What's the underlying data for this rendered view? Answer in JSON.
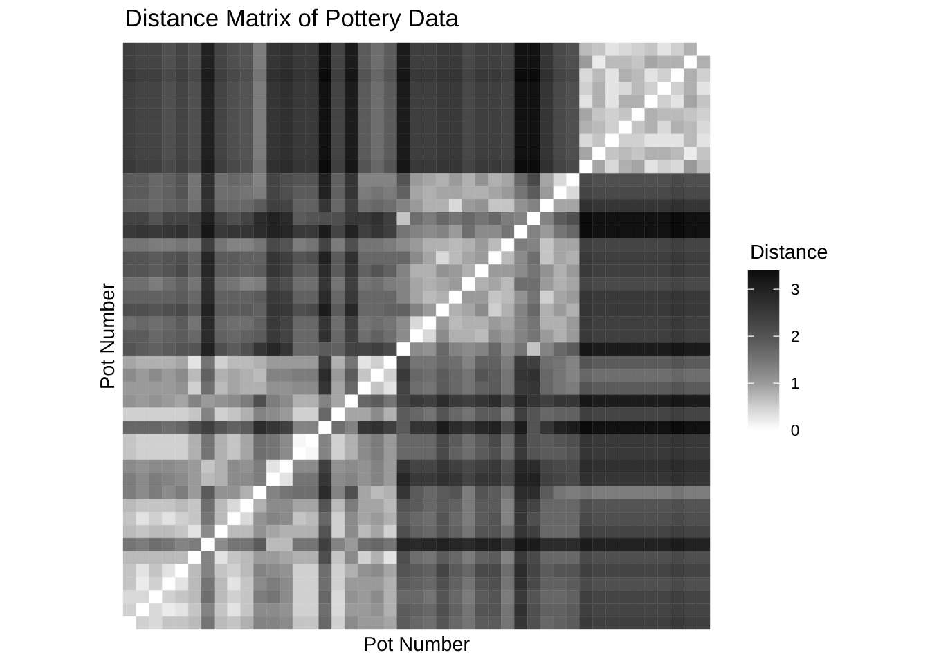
{
  "chart_data": {
    "type": "heatmap",
    "title": "Distance Matrix of Pottery Data",
    "xlabel": "Pot Number",
    "ylabel": "Pot Number",
    "clabel": "Distance",
    "categories": [
      null,
      null,
      null,
      null,
      null,
      null,
      null,
      null,
      null,
      null,
      null,
      null,
      null,
      null,
      null,
      null,
      null,
      null,
      null,
      null,
      null,
      null,
      null,
      null,
      null,
      null,
      null,
      null,
      null,
      null,
      null,
      null,
      null,
      null,
      null,
      null,
      null,
      null,
      null,
      null,
      null,
      null,
      null,
      null,
      null
    ],
    "y_categories": [
      null,
      null,
      null,
      null,
      null,
      null,
      null,
      null,
      null,
      null,
      null,
      null,
      null,
      null,
      null,
      null,
      null,
      null,
      null,
      null,
      null,
      null,
      null,
      null,
      null,
      null,
      null,
      null,
      null,
      null,
      null,
      null,
      null,
      null,
      null,
      null,
      null,
      null,
      null,
      null,
      null,
      null,
      null,
      null,
      null
    ],
    "clim": [
      0,
      3.4
    ],
    "cticks": [
      0,
      1,
      2,
      3
    ],
    "cells": [
      [
        2.4,
        2.3,
        2.3,
        2.1,
        2.3,
        2.1,
        3.0,
        2.3,
        2.1,
        2.0,
        1.4,
        2.6,
        2.7,
        2.5,
        2.5,
        3.3,
        2.3,
        3.1,
        1.9,
        1.6,
        1.9,
        3.1,
        2.4,
        2.4,
        2.5,
        2.5,
        2.2,
        2.4,
        2.4,
        2.3,
        3.3,
        3.3,
        2.6,
        2.2,
        2.1,
        0.7,
        0.6,
        0.3,
        0.4,
        0.5,
        0.6,
        0.3,
        0.5,
        0.8,
        0
      ],
      [
        2.4,
        2.3,
        2.3,
        2.1,
        2.3,
        2.1,
        3.0,
        2.3,
        2.1,
        2.0,
        1.4,
        2.6,
        2.7,
        2.5,
        2.5,
        3.3,
        2.3,
        3.1,
        1.9,
        1.6,
        1.9,
        3.1,
        2.4,
        2.4,
        2.5,
        2.5,
        2.2,
        2.4,
        2.4,
        2.3,
        3.3,
        3.3,
        2.6,
        2.2,
        2.1,
        1.0,
        0.2,
        0.7,
        0.7,
        0.6,
        0.9,
        0.8,
        0.8,
        0,
        0.8
      ],
      [
        2.5,
        2.4,
        2.4,
        2.2,
        2.4,
        2.2,
        3.1,
        2.4,
        2.2,
        2.1,
        1.5,
        2.7,
        2.8,
        2.6,
        2.6,
        3.4,
        2.4,
        3.2,
        2.0,
        1.7,
        2.0,
        3.2,
        2.5,
        2.5,
        2.6,
        2.6,
        2.3,
        2.5,
        2.5,
        2.4,
        3.4,
        3.4,
        2.7,
        2.3,
        2.2,
        0.4,
        0.7,
        0.3,
        0.8,
        0.7,
        0.3,
        0.5,
        0,
        0.8,
        0.5
      ],
      [
        2.4,
        2.3,
        2.3,
        2.1,
        2.3,
        2.1,
        3.0,
        2.3,
        2.1,
        2.0,
        1.4,
        2.6,
        2.7,
        2.5,
        2.5,
        3.3,
        2.3,
        3.1,
        1.9,
        1.6,
        1.9,
        3.1,
        2.4,
        2.4,
        2.5,
        2.5,
        2.2,
        2.4,
        2.4,
        2.3,
        3.3,
        3.3,
        2.6,
        2.2,
        2.1,
        0.5,
        0.8,
        0.3,
        0.4,
        0.7,
        0.5,
        0,
        0.5,
        0.8,
        0.3
      ],
      [
        2.4,
        2.3,
        2.3,
        2.1,
        2.3,
        2.1,
        3.0,
        2.3,
        2.1,
        2.0,
        1.4,
        2.6,
        2.7,
        2.5,
        2.5,
        3.3,
        2.3,
        3.1,
        1.9,
        1.6,
        1.9,
        3.1,
        2.4,
        2.4,
        2.5,
        2.5,
        2.2,
        2.4,
        2.4,
        2.3,
        3.3,
        3.3,
        2.6,
        2.2,
        2.1,
        0.3,
        0.8,
        0.3,
        0.8,
        0.8,
        0,
        0.5,
        0.3,
        0.9,
        0.6
      ],
      [
        2.4,
        2.3,
        2.3,
        2.1,
        2.3,
        2.1,
        3.0,
        2.3,
        2.1,
        2.0,
        1.4,
        2.6,
        2.7,
        2.5,
        2.5,
        3.3,
        2.3,
        3.1,
        1.9,
        1.6,
        1.9,
        3.1,
        2.4,
        2.4,
        2.5,
        2.5,
        2.2,
        2.4,
        2.4,
        2.3,
        3.3,
        3.3,
        2.6,
        2.2,
        2.1,
        0.9,
        0.6,
        0.5,
        0.6,
        0,
        0.8,
        0.7,
        0.7,
        0.6,
        0.5
      ],
      [
        2.4,
        2.3,
        2.3,
        2.1,
        2.3,
        2.1,
        3.0,
        2.3,
        2.1,
        2.0,
        1.4,
        2.6,
        2.7,
        2.5,
        2.5,
        3.3,
        2.3,
        3.1,
        1.9,
        1.6,
        1.9,
        3.1,
        2.4,
        2.4,
        2.5,
        2.5,
        2.2,
        2.4,
        2.4,
        2.3,
        3.3,
        3.3,
        2.6,
        2.2,
        2.1,
        0.8,
        0.7,
        0.5,
        0,
        0.6,
        0.8,
        0.4,
        0.8,
        0.7,
        0.4
      ],
      [
        2.4,
        2.3,
        2.3,
        2.1,
        2.3,
        2.1,
        3.0,
        2.3,
        2.1,
        2.0,
        1.4,
        2.6,
        2.7,
        2.5,
        2.5,
        3.3,
        2.3,
        3.1,
        1.9,
        1.6,
        1.9,
        3.1,
        2.4,
        2.4,
        2.5,
        2.5,
        2.2,
        2.4,
        2.4,
        2.3,
        3.3,
        3.3,
        2.6,
        2.2,
        2.1,
        0.4,
        0.6,
        0,
        0.5,
        0.5,
        0.3,
        0.3,
        0.3,
        0.7,
        0.3
      ],
      [
        2.4,
        2.3,
        2.3,
        2.1,
        2.3,
        2.1,
        3.0,
        2.3,
        2.1,
        2.0,
        1.4,
        2.6,
        2.7,
        2.5,
        2.5,
        3.3,
        2.3,
        3.1,
        1.9,
        1.6,
        1.9,
        3.1,
        2.4,
        2.4,
        2.5,
        2.5,
        2.2,
        2.4,
        2.4,
        2.3,
        3.3,
        3.3,
        2.6,
        2.2,
        2.1,
        0.9,
        0,
        0.6,
        0.7,
        0.6,
        0.8,
        0.8,
        0.7,
        0.2,
        0.6
      ],
      [
        2.5,
        2.4,
        2.4,
        2.2,
        2.4,
        2.2,
        3.1,
        2.4,
        2.2,
        2.1,
        1.5,
        2.7,
        2.8,
        2.6,
        2.6,
        3.4,
        2.4,
        3.2,
        2.0,
        1.7,
        2.0,
        3.2,
        2.5,
        2.5,
        2.6,
        2.6,
        2.3,
        2.5,
        2.5,
        2.4,
        3.4,
        3.4,
        2.7,
        2.3,
        2.2,
        0,
        0.9,
        0.4,
        0.8,
        0.9,
        0.3,
        0.5,
        0.4,
        1.0,
        0.7
      ],
      [
        1.9,
        1.9,
        1.7,
        1.8,
        2.0,
        1.5,
        2.7,
        1.6,
        1.7,
        1.6,
        1.3,
        2.3,
        2.1,
        2.0,
        2.0,
        3.0,
        1.8,
        2.6,
        1.3,
        1.3,
        1.3,
        2.0,
        1.0,
        0.9,
        0.8,
        1.0,
        0.8,
        1.1,
        0.8,
        0.9,
        1.7,
        2.2,
        0.9,
        0.4,
        0,
        2.2,
        2.1,
        2.1,
        2.1,
        2.1,
        2.1,
        2.1,
        2.2,
        2.1,
        2.1
      ],
      [
        1.9,
        1.9,
        1.7,
        1.8,
        2.0,
        1.5,
        2.7,
        1.6,
        1.6,
        1.5,
        1.4,
        2.3,
        2.1,
        1.9,
        1.9,
        3.0,
        1.8,
        2.6,
        1.4,
        1.5,
        1.4,
        1.8,
        0.9,
        0.8,
        0.9,
        0.9,
        0.8,
        0.8,
        0.9,
        1.0,
        1.5,
        1.9,
        1.0,
        0,
        0.4,
        2.3,
        2.2,
        2.2,
        2.2,
        2.2,
        2.2,
        2.2,
        2.3,
        2.2,
        2.2
      ],
      [
        1.8,
        1.8,
        1.7,
        1.8,
        1.9,
        1.6,
        2.6,
        1.7,
        1.7,
        1.7,
        1.9,
        2.4,
        2.3,
        1.8,
        1.8,
        2.6,
        1.7,
        2.4,
        1.6,
        1.7,
        1.6,
        1.3,
        1.0,
        0.8,
        0.8,
        0.4,
        1.0,
        1.1,
        0.6,
        0.6,
        1.1,
        1.3,
        0,
        0.9,
        0.9,
        2.7,
        2.6,
        2.6,
        2.6,
        2.6,
        2.6,
        2.6,
        2.7,
        2.6,
        2.6
      ],
      [
        2.3,
        2.3,
        2.0,
        2.3,
        2.3,
        2.4,
        3.0,
        2.3,
        2.1,
        2.3,
        2.8,
        3.0,
        2.8,
        1.9,
        2.0,
        2.1,
        2.1,
        2.5,
        2.5,
        2.7,
        2.4,
        0.6,
        1.6,
        1.4,
        1.7,
        1.5,
        1.7,
        1.5,
        1.7,
        1.4,
        1.3,
        0,
        1.3,
        1.9,
        2.1,
        3.4,
        3.3,
        3.3,
        3.3,
        3.3,
        3.3,
        3.3,
        3.4,
        3.3,
        3.3
      ],
      [
        2.5,
        2.6,
        2.5,
        2.6,
        2.7,
        2.4,
        3.2,
        2.5,
        2.6,
        2.6,
        2.8,
        3.0,
        2.9,
        2.5,
        2.5,
        3.1,
        2.3,
        3.0,
        2.4,
        2.6,
        2.4,
        1.5,
        1.3,
        1.2,
        1.3,
        1.0,
        1.6,
        1.2,
        1.2,
        1.5,
        0,
        1.3,
        1.0,
        1.5,
        1.7,
        3.4,
        3.3,
        3.3,
        3.3,
        3.3,
        3.3,
        3.3,
        3.4,
        3.3,
        3.3
      ],
      [
        1.5,
        1.5,
        1.4,
        1.4,
        1.5,
        1.4,
        2.4,
        1.5,
        1.3,
        1.3,
        1.5,
        2.2,
        2.0,
        1.4,
        1.5,
        2.3,
        1.4,
        2.1,
        1.5,
        1.5,
        1.4,
        1.2,
        1.0,
        0.8,
        0.8,
        0.7,
        0.8,
        1.0,
        0.7,
        0,
        1.4,
        1.3,
        0.6,
        0.9,
        0.9,
        2.4,
        2.3,
        2.3,
        2.3,
        2.3,
        2.3,
        2.3,
        2.4,
        2.3,
        2.3
      ],
      [
        2.0,
        2.0,
        1.9,
        2.0,
        2.1,
        1.8,
        2.9,
        1.9,
        1.9,
        1.8,
        1.8,
        2.6,
        2.4,
        2.0,
        2.1,
        3.0,
        1.9,
        2.7,
        1.7,
        1.7,
        1.7,
        1.7,
        1.2,
        0.9,
        0.4,
        0.7,
        0.9,
        1.0,
        0,
        0.7,
        1.2,
        1.6,
        0.6,
        0.9,
        0.8,
        2.5,
        2.4,
        2.4,
        2.4,
        2.4,
        2.4,
        2.4,
        2.5,
        2.4,
        2.4
      ],
      [
        2.0,
        2.0,
        1.9,
        2.0,
        2.2,
        1.8,
        2.9,
        1.9,
        1.9,
        1.8,
        1.9,
        2.6,
        2.4,
        1.9,
        1.9,
        2.8,
        1.9,
        2.6,
        1.8,
        2.0,
        1.8,
        1.3,
        0.8,
        0.8,
        1.1,
        1.0,
        0.8,
        0,
        1.0,
        1.0,
        1.2,
        1.5,
        1.1,
        0.8,
        1.0,
        2.5,
        2.4,
        2.4,
        2.4,
        2.4,
        2.4,
        2.4,
        2.5,
        2.4,
        2.4
      ],
      [
        1.6,
        1.6,
        1.4,
        1.6,
        1.8,
        1.5,
        2.7,
        1.6,
        1.5,
        1.3,
        1.4,
        2.3,
        2.1,
        1.6,
        1.6,
        2.6,
        1.5,
        2.4,
        1.5,
        1.6,
        1.4,
        1.3,
        0.9,
        0.8,
        0.9,
        1.0,
        0,
        0.8,
        0.9,
        0.7,
        1.6,
        1.6,
        1.0,
        0.8,
        0.9,
        2.3,
        2.2,
        2.2,
        2.2,
        2.2,
        2.2,
        2.2,
        2.3,
        2.2,
        2.2
      ],
      [
        1.8,
        1.8,
        1.8,
        1.8,
        1.9,
        1.7,
        2.8,
        1.8,
        1.8,
        1.8,
        1.9,
        2.5,
        2.4,
        1.8,
        1.8,
        2.8,
        1.7,
        2.5,
        1.7,
        1.7,
        1.7,
        1.3,
        0.9,
        0.7,
        0.8,
        0,
        1.0,
        1.0,
        0.6,
        0.7,
        1.1,
        1.5,
        0.5,
        0.9,
        1.0,
        2.6,
        2.5,
        2.5,
        2.5,
        2.5,
        2.5,
        2.5,
        2.6,
        2.5,
        2.5
      ],
      [
        2.1,
        2.1,
        2.0,
        2.1,
        2.2,
        1.9,
        3.0,
        1.9,
        1.9,
        1.9,
        1.8,
        2.6,
        2.5,
        2.1,
        2.2,
        3.1,
        1.9,
        2.9,
        1.7,
        1.7,
        1.8,
        1.8,
        1.3,
        1.0,
        0,
        0.8,
        0.9,
        1.2,
        0.5,
        0.8,
        1.3,
        1.7,
        0.8,
        1.0,
        0.8,
        2.6,
        2.5,
        2.5,
        2.5,
        2.5,
        2.5,
        2.5,
        2.6,
        2.5,
        2.5
      ],
      [
        1.6,
        1.7,
        1.6,
        1.7,
        1.9,
        1.5,
        2.8,
        1.7,
        1.6,
        1.6,
        1.8,
        2.5,
        2.3,
        1.7,
        1.7,
        2.6,
        1.6,
        2.4,
        1.5,
        1.6,
        1.5,
        1.2,
        0.4,
        0,
        1.0,
        0.7,
        0.8,
        0.8,
        1.0,
        0.9,
        1.3,
        1.5,
        0.8,
        0.8,
        1.0,
        2.5,
        2.4,
        2.4,
        2.4,
        2.4,
        2.4,
        2.4,
        2.5,
        2.4,
        2.4
      ],
      [
        1.9,
        1.9,
        1.7,
        1.8,
        1.9,
        1.7,
        2.8,
        1.8,
        1.7,
        1.8,
        1.9,
        2.5,
        2.3,
        1.7,
        1.7,
        2.7,
        1.7,
        2.4,
        1.6,
        1.8,
        1.6,
        1.2,
        0,
        0.4,
        1.2,
        0.8,
        0.8,
        0.7,
        1.2,
        1.0,
        1.3,
        1.5,
        1.0,
        0.8,
        1.0,
        2.5,
        2.4,
        2.4,
        2.4,
        2.4,
        2.4,
        2.4,
        2.5,
        2.4,
        2.4
      ],
      [
        2.0,
        1.9,
        1.8,
        1.9,
        2.0,
        2.0,
        3.0,
        2.1,
        1.9,
        2.1,
        2.6,
        2.9,
        2.6,
        1.7,
        1.7,
        1.9,
        1.8,
        2.3,
        2.3,
        2.4,
        2.2,
        0,
        1.2,
        1.1,
        1.7,
        1.3,
        1.2,
        1.3,
        1.7,
        1.2,
        1.5,
        0.6,
        1.3,
        1.7,
        1.9,
        3.2,
        3.1,
        3.1,
        3.1,
        3.1,
        3.1,
        3.1,
        3.2,
        3.1,
        3.1
      ],
      [
        0.9,
        0.8,
        0.8,
        0.8,
        0.9,
        0.3,
        1.5,
        0.5,
        0.7,
        0.7,
        0.8,
        1.0,
        1.0,
        1.0,
        1.0,
        2.4,
        0.8,
        1.5,
        0.3,
        0.5,
        0,
        2.2,
        1.5,
        1.5,
        1.7,
        1.6,
        1.3,
        1.8,
        1.8,
        1.4,
        2.5,
        2.4,
        1.6,
        1.5,
        1.3,
        2.0,
        1.9,
        1.9,
        1.9,
        1.9,
        1.9,
        1.9,
        2.0,
        1.9,
        1.9
      ],
      [
        1.2,
        1.0,
        1.2,
        1.0,
        1.2,
        0.7,
        1.8,
        0.8,
        0.9,
        0.8,
        0.7,
        1.3,
        1.3,
        1.4,
        1.4,
        2.8,
        1.0,
        1.9,
        0.6,
        0,
        0.5,
        2.5,
        1.7,
        1.6,
        1.9,
        1.7,
        1.5,
        2.0,
        1.9,
        1.5,
        2.6,
        2.7,
        1.7,
        1.5,
        1.3,
        1.7,
        1.6,
        1.6,
        1.6,
        1.6,
        1.6,
        1.6,
        1.7,
        1.6,
        1.6
      ],
      [
        1.0,
        1.0,
        1.0,
        1.0,
        1.1,
        0.5,
        1.6,
        0.7,
        0.9,
        0.8,
        0.8,
        1.1,
        1.1,
        1.2,
        1.2,
        2.6,
        0.9,
        1.7,
        0,
        0.6,
        0.3,
        2.3,
        1.6,
        1.5,
        1.9,
        1.7,
        1.5,
        1.8,
        1.9,
        1.5,
        2.5,
        2.6,
        1.7,
        1.5,
        1.4,
        2.0,
        1.9,
        1.9,
        1.9,
        1.9,
        1.9,
        1.9,
        2.0,
        1.9,
        1.9
      ],
      [
        1.1,
        1.0,
        1.1,
        1.0,
        0.9,
        1.3,
        1.0,
        1.1,
        1.2,
        1.4,
        2.1,
        1.4,
        1.2,
        0.8,
        0.8,
        1.3,
        0.9,
        0,
        1.7,
        1.9,
        1.5,
        2.3,
        2.5,
        2.4,
        2.8,
        2.5,
        2.4,
        2.6,
        2.8,
        2.2,
        2.9,
        2.6,
        2.4,
        2.6,
        2.6,
        3.2,
        3.1,
        3.1,
        3.1,
        3.1,
        3.1,
        3.1,
        3.2,
        3.1,
        3.1
      ],
      [
        0.5,
        0.5,
        0.5,
        0.5,
        0.5,
        0.6,
        1.3,
        0.5,
        0.6,
        0.8,
        1.3,
        1.2,
        1.0,
        0.5,
        0.5,
        1.7,
        0,
        0.9,
        0.9,
        1.2,
        0.8,
        1.9,
        1.7,
        1.5,
        2.0,
        1.7,
        1.5,
        1.9,
        1.9,
        1.4,
        2.4,
        2.0,
        1.7,
        1.8,
        1.8,
        2.4,
        2.3,
        2.3,
        2.3,
        2.3,
        2.3,
        2.3,
        2.4,
        2.3,
        2.3
      ],
      [
        1.7,
        1.7,
        1.7,
        1.6,
        1.7,
        2.1,
        2.4,
        2.0,
        1.8,
        1.9,
        2.8,
        2.6,
        2.4,
        1.3,
        1.3,
        0,
        1.6,
        1.3,
        2.6,
        2.7,
        2.4,
        1.9,
        2.6,
        2.6,
        3.1,
        2.8,
        2.6,
        2.9,
        3.0,
        2.3,
        3.1,
        2.0,
        2.6,
        3.0,
        3.1,
        3.4,
        3.3,
        3.3,
        3.3,
        3.3,
        3.3,
        3.3,
        3.4,
        3.3,
        3.3
      ],
      [
        0.6,
        0.5,
        0.5,
        0.5,
        0.5,
        0.8,
        1.5,
        0.8,
        0.6,
        0.9,
        1.6,
        1.5,
        1.2,
        0.1,
        0,
        1.3,
        0.5,
        0.8,
        1.2,
        1.4,
        1.0,
        1.7,
        1.7,
        1.7,
        2.2,
        1.9,
        1.6,
        1.9,
        2.2,
        1.6,
        2.6,
        2.0,
        1.9,
        2.0,
        2.1,
        2.6,
        2.5,
        2.5,
        2.5,
        2.5,
        2.5,
        2.5,
        2.6,
        2.5,
        2.5
      ],
      [
        0.6,
        0.5,
        0.5,
        0.5,
        0.5,
        0.8,
        1.5,
        0.8,
        0.6,
        0.9,
        1.6,
        1.5,
        1.2,
        0,
        0.1,
        1.3,
        0.5,
        0.8,
        1.2,
        1.4,
        1.0,
        1.7,
        1.7,
        1.7,
        2.2,
        1.8,
        1.6,
        1.9,
        2.1,
        1.6,
        2.5,
        2.0,
        1.9,
        1.9,
        2.0,
        2.6,
        2.5,
        2.5,
        2.5,
        2.5,
        2.5,
        2.5,
        2.6,
        2.5,
        2.5
      ],
      [
        1.2,
        1.1,
        1.2,
        1.2,
        1.1,
        1.0,
        0.6,
        0.8,
        1.2,
        1.1,
        1.4,
        0.3,
        0,
        1.2,
        1.2,
        2.4,
        1.1,
        1.2,
        1.1,
        1.3,
        1.0,
        2.6,
        2.3,
        2.3,
        2.6,
        2.4,
        2.2,
        2.4,
        2.5,
        2.1,
        2.9,
        2.8,
        2.3,
        2.2,
        2.2,
        2.8,
        2.7,
        2.7,
        2.7,
        2.7,
        2.7,
        2.7,
        2.8,
        2.7,
        2.7
      ],
      [
        1.4,
        1.2,
        1.4,
        1.3,
        1.2,
        1.0,
        0.7,
        0.8,
        1.2,
        1.2,
        1.4,
        0,
        0.3,
        1.5,
        1.5,
        2.6,
        1.2,
        1.3,
        1.1,
        1.3,
        1.0,
        2.9,
        2.5,
        2.5,
        2.7,
        2.6,
        2.3,
        2.6,
        2.6,
        2.2,
        3.0,
        3.0,
        2.4,
        2.3,
        2.2,
        2.7,
        2.6,
        2.6,
        2.6,
        2.6,
        2.6,
        2.6,
        2.7,
        2.6,
        2.6
      ],
      [
        1.4,
        1.2,
        1.4,
        1.2,
        1.4,
        1.0,
        1.9,
        1.1,
        1.1,
        0.8,
        0,
        1.3,
        1.5,
        1.6,
        1.6,
        2.8,
        1.3,
        2.1,
        0.9,
        0.7,
        0.8,
        2.6,
        1.9,
        1.7,
        1.9,
        2.0,
        1.4,
        2.0,
        1.9,
        1.5,
        2.8,
        2.8,
        1.9,
        1.5,
        1.4,
        1.5,
        1.4,
        1.4,
        1.4,
        1.4,
        1.4,
        1.4,
        1.5,
        1.4,
        1.4
      ],
      [
        0.7,
        0.6,
        0.6,
        0.6,
        0.7,
        0.6,
        1.6,
        0.7,
        0.4,
        0,
        0.8,
        1.2,
        1.2,
        0.9,
        0.9,
        2.0,
        0.7,
        1.4,
        0.9,
        0.9,
        0.7,
        2.0,
        1.9,
        1.7,
        1.9,
        1.8,
        1.4,
        1.9,
        1.9,
        1.3,
        2.6,
        2.3,
        1.7,
        1.7,
        1.7,
        2.1,
        2.0,
        2.0,
        2.0,
        2.0,
        2.0,
        2.0,
        2.1,
        2.0,
        2.0
      ],
      [
        0.6,
        0.3,
        0.5,
        0.3,
        0.5,
        0.6,
        1.5,
        0.7,
        0,
        0.4,
        1.1,
        1.3,
        1.2,
        0.6,
        0.7,
        1.7,
        0.5,
        1.2,
        0.9,
        1.0,
        0.8,
        1.9,
        1.7,
        1.6,
        2.0,
        1.7,
        1.4,
        1.9,
        2.0,
        1.3,
        2.6,
        2.1,
        1.7,
        1.7,
        1.7,
        2.2,
        2.1,
        2.1,
        2.1,
        2.1,
        2.1,
        2.1,
        2.2,
        2.1,
        2.1
      ],
      [
        0.7,
        0.6,
        0.7,
        0.7,
        0.6,
        0.3,
        1.2,
        0,
        0.7,
        0.7,
        1.1,
        0.9,
        0.8,
        0.8,
        0.8,
        2.0,
        0.5,
        1.2,
        0.7,
        0.9,
        0.5,
        2.1,
        1.8,
        1.7,
        2.0,
        1.8,
        1.5,
        2.0,
        2.0,
        1.6,
        2.6,
        2.4,
        1.7,
        1.7,
        1.7,
        2.4,
        2.3,
        2.3,
        2.3,
        2.3,
        2.3,
        2.3,
        2.4,
        2.3,
        2.3
      ],
      [
        1.5,
        1.4,
        1.6,
        1.5,
        1.3,
        1.4,
        0,
        1.2,
        1.5,
        1.5,
        1.9,
        0.7,
        0.7,
        1.5,
        1.5,
        2.4,
        1.3,
        1.0,
        1.6,
        1.7,
        1.5,
        2.9,
        2.8,
        2.9,
        3.0,
        2.9,
        2.8,
        3.0,
        3.0,
        2.6,
        3.2,
        3.1,
        2.8,
        2.8,
        2.8,
        3.1,
        3.0,
        3.0,
        3.0,
        3.0,
        3.0,
        3.0,
        3.1,
        3.0,
        3.0
      ],
      [
        0.7,
        0.7,
        0.7,
        0.7,
        0.7,
        0,
        1.3,
        0.3,
        0.6,
        0.7,
        1.0,
        1.0,
        0.9,
        0.8,
        0.8,
        2.1,
        0.6,
        1.2,
        0.5,
        0.8,
        0.3,
        2.1,
        1.6,
        1.5,
        1.9,
        1.7,
        1.4,
        1.8,
        1.9,
        1.3,
        2.5,
        2.2,
        1.7,
        1.7,
        1.7,
        2.2,
        2.1,
        2.1,
        2.1,
        2.1,
        2.1,
        2.1,
        2.2,
        2.1,
        2.1
      ],
      [
        0.6,
        0.3,
        0.6,
        0.3,
        0,
        0.7,
        1.3,
        0.6,
        0.5,
        0.7,
        1.3,
        1.2,
        1.1,
        0.5,
        0.5,
        1.6,
        0.5,
        0.8,
        1.1,
        1.2,
        0.9,
        2.0,
        1.9,
        1.8,
        2.3,
        1.9,
        1.7,
        2.2,
        2.2,
        1.6,
        2.8,
        2.3,
        1.9,
        2.0,
        2.0,
        2.4,
        2.3,
        2.3,
        2.3,
        2.3,
        2.3,
        2.3,
        2.4,
        2.3,
        2.3
      ],
      [
        0.6,
        0.2,
        0.5,
        0,
        0.3,
        0.7,
        1.5,
        0.7,
        0.3,
        0.6,
        1.2,
        1.4,
        1.2,
        0.5,
        0.5,
        1.6,
        0.5,
        1.0,
        1.0,
        1.0,
        0.8,
        1.9,
        1.8,
        1.7,
        2.1,
        1.8,
        1.5,
        2.0,
        2.1,
        1.5,
        2.7,
        2.2,
        1.8,
        1.8,
        1.9,
        2.2,
        2.1,
        2.1,
        2.1,
        2.1,
        2.1,
        2.1,
        2.2,
        2.1,
        2.1
      ],
      [
        0.4,
        0.4,
        0,
        0.5,
        0.6,
        0.7,
        1.6,
        0.7,
        0.5,
        0.6,
        1.4,
        1.5,
        1.2,
        0.5,
        0.5,
        1.7,
        0.4,
        1.1,
        1.0,
        1.2,
        0.8,
        1.7,
        1.7,
        1.5,
        2.0,
        1.7,
        1.4,
        1.9,
        2.0,
        1.4,
        2.5,
        2.0,
        1.7,
        1.7,
        1.8,
        2.4,
        2.3,
        2.3,
        2.3,
        2.3,
        2.3,
        2.3,
        2.4,
        2.3,
        2.3
      ],
      [
        0.5,
        0,
        0.4,
        0.2,
        0.3,
        0.6,
        1.3,
        0.6,
        0.3,
        0.6,
        1.2,
        1.2,
        1.1,
        0.5,
        0.5,
        1.6,
        0.4,
        1.0,
        1.0,
        1.1,
        0.8,
        1.9,
        1.8,
        1.7,
        2.1,
        1.8,
        1.5,
        2.0,
        2.0,
        1.5,
        2.7,
        2.1,
        1.8,
        1.8,
        1.9,
        2.4,
        2.3,
        2.3,
        2.3,
        2.3,
        2.3,
        2.3,
        2.4,
        2.3,
        2.3
      ],
      [
        0,
        0.5,
        0.4,
        0.6,
        0.6,
        0.7,
        1.5,
        0.7,
        0.6,
        0.8,
        1.3,
        1.3,
        1.2,
        0.6,
        0.6,
        1.7,
        0.5,
        1.2,
        1.0,
        1.0,
        0.9,
        1.9,
        1.7,
        1.6,
        2.0,
        1.7,
        1.5,
        1.9,
        1.9,
        1.5,
        2.6,
        2.1,
        1.7,
        1.8,
        1.9,
        2.5,
        2.4,
        2.4,
        2.4,
        2.4,
        2.4,
        2.4,
        2.5,
        2.4,
        2.4
      ]
    ]
  }
}
